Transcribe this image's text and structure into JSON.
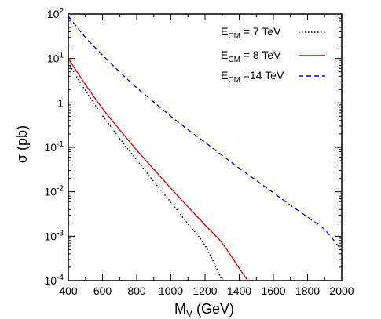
{
  "chart_data": {
    "type": "line",
    "xlabel": "M",
    "xlabel_sub": "V",
    "xlabel_unit": "(GeV)",
    "ylabel": "σ (pb)",
    "xlim": [
      400,
      2000
    ],
    "ylim": [
      0.0001,
      100
    ],
    "yscale": "log",
    "x_ticks": [
      400,
      600,
      800,
      1000,
      1200,
      1400,
      1600,
      1800,
      2000
    ],
    "y_ticks": [
      {
        "base": "10",
        "exp": "2",
        "value": 100
      },
      {
        "base": "10",
        "exp": "1",
        "value": 10
      },
      {
        "base": "1",
        "exp": "",
        "value": 1
      },
      {
        "base": "10",
        "exp": "-1",
        "value": 0.1
      },
      {
        "base": "10",
        "exp": "-2",
        "value": 0.01
      },
      {
        "base": "10",
        "exp": "-3",
        "value": 0.001
      },
      {
        "base": "10",
        "exp": "-4",
        "value": 0.0001
      }
    ],
    "legend_position": "top-right",
    "series": [
      {
        "name": "E_CM = 7 TeV",
        "legend_main": "E",
        "legend_sub": "CM",
        "legend_rest": " = 7 TeV",
        "color": "#000000",
        "dash": "dotted",
        "x": [
          400,
          500,
          600,
          700,
          800,
          900,
          1000,
          1100,
          1200,
          1300
        ],
        "y": [
          7.9,
          1.9,
          0.52,
          0.16,
          0.052,
          0.017,
          0.0058,
          0.0019,
          0.00062,
          0.0001
        ]
      },
      {
        "name": "E_CM = 8 TeV",
        "legend_main": "E",
        "legend_sub": "CM",
        "legend_rest": " = 8 TeV",
        "color": "#e00000",
        "dash": "solid",
        "x": [
          400,
          500,
          600,
          700,
          800,
          900,
          1000,
          1100,
          1200,
          1300,
          1400,
          1450
        ],
        "y": [
          10,
          2.6,
          0.75,
          0.25,
          0.087,
          0.032,
          0.012,
          0.0046,
          0.0018,
          0.0007,
          0.00019,
          0.0001
        ]
      },
      {
        "name": "E_CM =14 TeV",
        "legend_main": "E",
        "legend_sub": "CM",
        "legend_rest": " =14 TeV",
        "color": "#0000dd",
        "dash": "dashed",
        "x": [
          400,
          500,
          600,
          700,
          800,
          900,
          1000,
          1100,
          1200,
          1300,
          1400,
          1500,
          1600,
          1700,
          1800,
          1900,
          2000
        ],
        "y": [
          90,
          30,
          12,
          5.0,
          2.2,
          1.05,
          0.5,
          0.25,
          0.13,
          0.066,
          0.034,
          0.018,
          0.0095,
          0.005,
          0.0027,
          0.0014,
          0.00048
        ]
      }
    ]
  }
}
